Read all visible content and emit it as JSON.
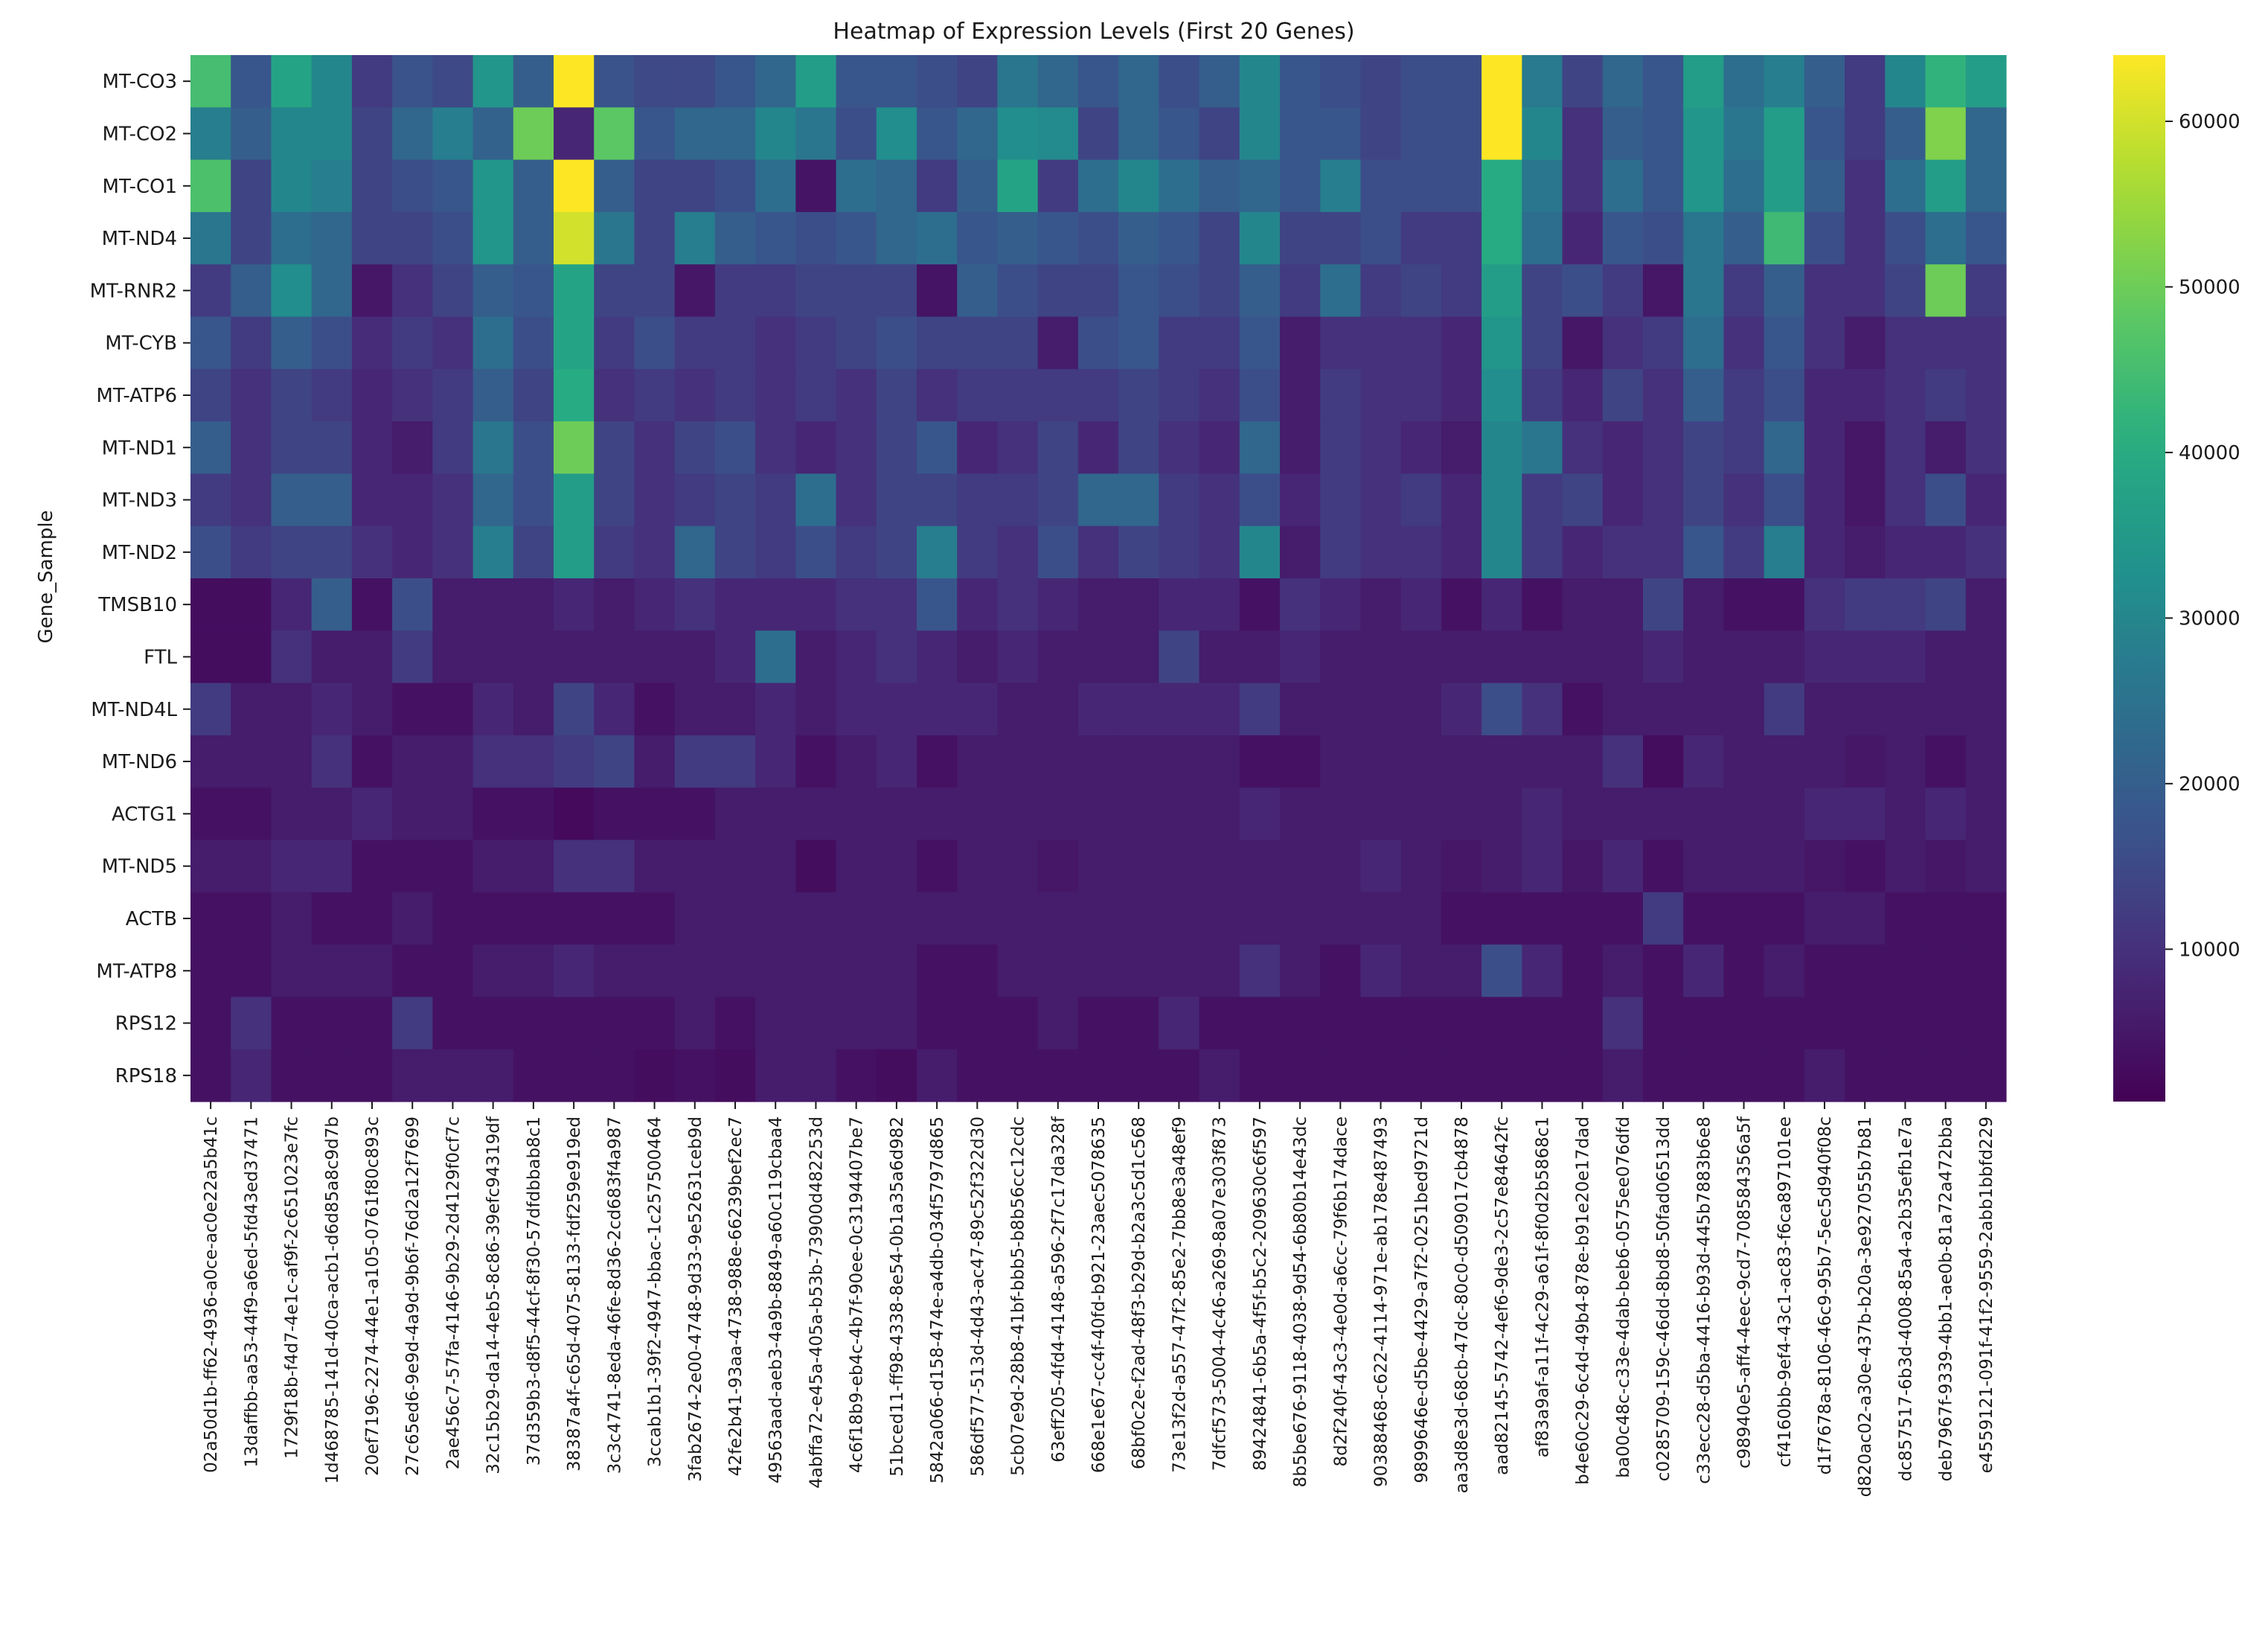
{
  "chart_data": {
    "type": "heatmap",
    "title": "Heatmap of Expression Levels (First 20 Genes)",
    "ylabel": "Gene_Sample",
    "xlabel": "",
    "colormap": "viridis",
    "vmin": 800,
    "vmax": 64000,
    "colorbar_ticks": [
      10000,
      20000,
      30000,
      40000,
      50000,
      60000
    ],
    "colorbar_labels": [
      "10000",
      "20000",
      "30000",
      "40000",
      "50000",
      "60000"
    ],
    "rows": [
      "MT-CO3",
      "MT-CO2",
      "MT-CO1",
      "MT-ND4",
      "MT-RNR2",
      "MT-CYB",
      "MT-ATP6",
      "MT-ND1",
      "MT-ND3",
      "MT-ND2",
      "TMSB10",
      "FTL",
      "MT-ND4L",
      "MT-ND6",
      "ACTG1",
      "MT-ND5",
      "ACTB",
      "MT-ATP8",
      "RPS12",
      "RPS18"
    ],
    "columns": [
      "02a50d1b-ff62-4936-a0ce-ac0e22a5b41c",
      "13daffbb-aa53-44f9-a6ed-5fd43ed37471",
      "1729f18b-f4d7-4e1c-af9f-2c651023e7fc",
      "1d468785-141d-40ca-acb1-d6d85a8c9d7b",
      "20ef7196-2274-44e1-a105-0761f80c893c",
      "27c65ed6-9e9d-4a9d-9b6f-76d2a12f7699",
      "2ae456c7-57fa-4146-9b29-2d4129f0cf7c",
      "32c15b29-da14-4eb5-8c86-39efc94319df",
      "37d359b3-d8f5-44cf-8f30-57dfdbbab8c1",
      "38387a4f-c65d-4075-8133-fdf259e919ed",
      "3c3c4741-8eda-46fe-8d36-2cd683f4a987",
      "3ccab1b1-39f2-4947-bbac-1c257500464",
      "3fab2674-2e00-4748-9d33-9e52631ceb9d",
      "42fe2b41-93aa-4738-988e-66239bef2ec7",
      "49563aad-aeb3-4a9b-8849-a60c119cbaa4",
      "4abffa72-e45a-405a-b53b-73900d482253d",
      "4c6f18b9-eb4c-4b7f-90ee-0c3194407be7",
      "51bced11-ff98-4338-8e54-0b1a35a6d982",
      "5842a066-d158-474e-a4db-034f5797d865",
      "586df577-513d-4d43-ac47-89c52f322d30",
      "5cb07e9d-28b8-41bf-bbb5-b8b56cc12cdc",
      "63eff205-4fd4-4148-a596-2f7c17da328f",
      "668e1e67-cc4f-40fd-b921-23aec5078635",
      "68bf0c2e-f2ad-48f3-b29d-b2a3c5d1c568",
      "73e13f2d-a557-47f2-85e2-7bb8e3a48ef9",
      "7dfcf573-5004-4c46-a269-8a07e303f873",
      "89424841-6b5a-4f5f-b5c2-209630c6f597",
      "8b5be676-9118-4038-9d54-6b80b14e43dc",
      "8d2f240f-43c3-4e0d-a6cc-79f6b174dace",
      "90388468-c622-4114-971e-ab178e487493",
      "9899646e-d5be-4429-a7f2-0251bed9721d",
      "aa3d8e3d-68cb-47dc-80c0-d509017cb4878",
      "aad82145-5742-4ef6-9de3-2c57e84642fc",
      "af83a9af-a11f-4c29-a61f-8f0d2b5868c1",
      "b4e60c29-6c4d-49b4-878e-b91e20e17dad",
      "ba00c48c-c33e-4dab-beb6-0575ee076dfd",
      "c0285709-159c-46dd-8bd8-50fad06513dd",
      "c33ecc28-d5ba-4416-b93d-445b7883b6e8",
      "c98940e5-aff4-4eec-9cd7-708584356a5f",
      "cf4160bb-9ef4-43c1-ac83-f6ca897101ee",
      "d1f7678a-8106-46c9-95b7-5ec5d940f08c",
      "d820ac02-a30e-437b-b20a-3e927055b7b81",
      "dc857517-6b3d-4008-85a4-a2b35efb1e7a",
      "deb7967f-9339-4bb1-ae0b-81a72a472bba",
      "e4559121-091f-41f2-9559-2abb1bbfd229"
    ],
    "values": [
      [
        45000,
        18000,
        38000,
        30000,
        12000,
        17000,
        15000,
        34000,
        20000,
        64000,
        17000,
        15000,
        15000,
        18000,
        22000,
        36000,
        18000,
        18000,
        16000,
        14000,
        26000,
        22000,
        18000,
        22000,
        16000,
        20000,
        30000,
        18000,
        16000,
        14000,
        16000,
        16000,
        64000,
        27000,
        14000,
        22000,
        18000,
        36000,
        24000,
        28000,
        20000,
        12000,
        30000,
        42000,
        36000
      ],
      [
        28000,
        20000,
        30000,
        30000,
        14000,
        22000,
        28000,
        21000,
        50000,
        8000,
        48000,
        18000,
        22000,
        22000,
        30000,
        26000,
        16000,
        32000,
        18000,
        22000,
        32000,
        31000,
        14000,
        22000,
        18000,
        14000,
        30000,
        18000,
        18000,
        14000,
        16000,
        16000,
        64000,
        30000,
        10000,
        20000,
        18000,
        34000,
        26000,
        36000,
        18000,
        12000,
        20000,
        52000,
        22000
      ],
      [
        46000,
        14000,
        30000,
        28000,
        14000,
        16000,
        18000,
        34000,
        20000,
        64000,
        20000,
        14000,
        14000,
        16000,
        24000,
        4500,
        24000,
        22000,
        12000,
        20000,
        38000,
        12000,
        24000,
        30000,
        24000,
        20000,
        22000,
        18000,
        28000,
        16000,
        16000,
        16000,
        40000,
        26000,
        10000,
        24000,
        18000,
        34000,
        24000,
        36000,
        20000,
        10000,
        24000,
        36000,
        22000
      ],
      [
        26000,
        14000,
        24000,
        22000,
        14000,
        14000,
        16000,
        34000,
        20000,
        60000,
        26000,
        14000,
        28000,
        20000,
        18000,
        16000,
        18000,
        22000,
        24000,
        18000,
        20000,
        18000,
        16000,
        20000,
        18000,
        14000,
        30000,
        14000,
        14000,
        16000,
        12000,
        12000,
        40000,
        24000,
        8000,
        18000,
        16000,
        26000,
        20000,
        44000,
        16000,
        10000,
        16000,
        24000,
        18000
      ],
      [
        12000,
        20000,
        32000,
        22000,
        5000,
        10000,
        14000,
        20000,
        18000,
        38000,
        14000,
        14000,
        5000,
        12000,
        12000,
        14000,
        14000,
        14000,
        4500,
        20000,
        16000,
        14000,
        14000,
        18000,
        16000,
        14000,
        20000,
        12000,
        24000,
        12000,
        14000,
        12000,
        36000,
        14000,
        16000,
        12000,
        5000,
        26000,
        12000,
        20000,
        10000,
        10000,
        14000,
        50000,
        12000
      ],
      [
        18000,
        12000,
        20000,
        16000,
        9000,
        12000,
        10000,
        24000,
        16000,
        38000,
        12000,
        16000,
        12000,
        12000,
        10000,
        12000,
        14000,
        16000,
        14000,
        14000,
        14000,
        6000,
        16000,
        18000,
        12000,
        12000,
        18000,
        6000,
        10000,
        10000,
        10000,
        8000,
        34000,
        14000,
        5000,
        10000,
        12000,
        24000,
        10000,
        18000,
        10000,
        6000,
        10000,
        10000,
        10000
      ],
      [
        14000,
        10000,
        14000,
        12000,
        8000,
        10000,
        12000,
        20000,
        14000,
        40000,
        10000,
        12000,
        10000,
        12000,
        10000,
        12000,
        10000,
        14000,
        10000,
        12000,
        12000,
        12000,
        12000,
        14000,
        12000,
        10000,
        16000,
        6000,
        12000,
        10000,
        10000,
        8000,
        32000,
        12000,
        8000,
        14000,
        10000,
        20000,
        12000,
        16000,
        8000,
        8000,
        10000,
        12000,
        10000
      ],
      [
        20000,
        10000,
        14000,
        14000,
        8000,
        6000,
        12000,
        26000,
        16000,
        50000,
        14000,
        10000,
        14000,
        16000,
        10000,
        8000,
        10000,
        14000,
        18000,
        8000,
        10000,
        14000,
        8000,
        14000,
        10000,
        8000,
        22000,
        6000,
        12000,
        10000,
        8000,
        6000,
        30000,
        26000,
        10000,
        8000,
        10000,
        14000,
        12000,
        22000,
        8000,
        5000,
        10000,
        6000,
        10000
      ],
      [
        12000,
        10000,
        20000,
        20000,
        8000,
        8000,
        10000,
        22000,
        16000,
        36000,
        14000,
        10000,
        12000,
        14000,
        12000,
        24000,
        10000,
        14000,
        14000,
        12000,
        12000,
        14000,
        22000,
        22000,
        12000,
        10000,
        16000,
        8000,
        12000,
        10000,
        12000,
        8000,
        30000,
        12000,
        14000,
        8000,
        10000,
        14000,
        10000,
        16000,
        8000,
        5000,
        10000,
        16000,
        8000
      ],
      [
        16000,
        12000,
        14000,
        14000,
        10000,
        8000,
        10000,
        28000,
        14000,
        36000,
        12000,
        10000,
        22000,
        14000,
        12000,
        16000,
        12000,
        14000,
        28000,
        12000,
        10000,
        16000,
        10000,
        14000,
        12000,
        10000,
        30000,
        6000,
        12000,
        10000,
        10000,
        8000,
        30000,
        12000,
        8000,
        10000,
        10000,
        18000,
        12000,
        28000,
        8000,
        6000,
        8000,
        8000,
        10000
      ],
      [
        3000,
        3000,
        8000,
        20000,
        4000,
        16000,
        6000,
        6000,
        6000,
        8000,
        6000,
        8000,
        10000,
        8000,
        8000,
        8000,
        10000,
        10000,
        18000,
        8000,
        10000,
        8000,
        6000,
        6000,
        8000,
        8000,
        4000,
        10000,
        8000,
        6000,
        8000,
        4000,
        8000,
        4000,
        6000,
        6000,
        14000,
        6000,
        4000,
        4000,
        10000,
        12000,
        12000,
        14000,
        6000
      ],
      [
        3000,
        3000,
        10000,
        6000,
        6000,
        12000,
        6000,
        6000,
        6000,
        6000,
        6000,
        6000,
        6000,
        8000,
        24000,
        6000,
        8000,
        10000,
        8000,
        6000,
        8000,
        6000,
        6000,
        6000,
        14000,
        6000,
        6000,
        8000,
        6000,
        6000,
        6000,
        6000,
        6000,
        6000,
        6000,
        6000,
        8000,
        6000,
        6000,
        6000,
        8000,
        8000,
        8000,
        6000,
        6000
      ],
      [
        12000,
        6000,
        6000,
        8000,
        6000,
        4000,
        4000,
        8000,
        6000,
        14000,
        8000,
        4000,
        6000,
        6000,
        8000,
        6000,
        8000,
        8000,
        8000,
        8000,
        6000,
        6000,
        8000,
        8000,
        8000,
        8000,
        12000,
        6000,
        6000,
        6000,
        6000,
        8000,
        16000,
        10000,
        4000,
        6000,
        6000,
        6000,
        6000,
        12000,
        6000,
        6000,
        6000,
        6000,
        6000
      ],
      [
        6000,
        6000,
        6000,
        10000,
        4000,
        6000,
        6000,
        10000,
        10000,
        12000,
        14000,
        6000,
        12000,
        12000,
        8000,
        4000,
        6000,
        8000,
        4000,
        6000,
        6000,
        6000,
        6000,
        6000,
        6000,
        6000,
        4000,
        4000,
        6000,
        6000,
        6000,
        6000,
        6000,
        6000,
        6000,
        10000,
        3000,
        8000,
        6000,
        6000,
        6000,
        5000,
        6000,
        4000,
        6000
      ],
      [
        4000,
        4000,
        6000,
        6000,
        8000,
        6000,
        6000,
        4000,
        4000,
        2500,
        4000,
        4000,
        4000,
        6000,
        6000,
        6000,
        6000,
        6000,
        6000,
        6000,
        6000,
        6000,
        6000,
        6000,
        6000,
        6000,
        8000,
        6000,
        6000,
        6000,
        6000,
        6000,
        6000,
        8000,
        6000,
        6000,
        6000,
        6000,
        6000,
        6000,
        8000,
        8000,
        6000,
        8000,
        6000
      ],
      [
        6000,
        6000,
        8000,
        8000,
        4000,
        4000,
        4000,
        6000,
        6000,
        10000,
        10000,
        6000,
        6000,
        6000,
        6000,
        3000,
        6000,
        6000,
        4000,
        6000,
        6000,
        5000,
        6000,
        6000,
        6000,
        6000,
        6000,
        6000,
        6000,
        8000,
        6000,
        5000,
        6000,
        8000,
        5000,
        8000,
        4000,
        6000,
        6000,
        6000,
        5000,
        4000,
        6000,
        5000,
        6000
      ],
      [
        4000,
        4000,
        6000,
        4000,
        4000,
        6000,
        4000,
        4000,
        4000,
        4000,
        4000,
        4000,
        6000,
        6000,
        6000,
        6000,
        6000,
        6000,
        6000,
        6000,
        6000,
        6000,
        6000,
        6000,
        6000,
        6000,
        6000,
        6000,
        6000,
        6000,
        6000,
        4000,
        4000,
        4000,
        4000,
        4000,
        12000,
        4000,
        4000,
        4000,
        6000,
        6000,
        4000,
        4000,
        4000
      ],
      [
        4000,
        4000,
        6000,
        6000,
        6000,
        4000,
        4000,
        6000,
        6000,
        8000,
        6000,
        6000,
        6000,
        6000,
        6000,
        6000,
        6000,
        6000,
        4000,
        4000,
        6000,
        6000,
        6000,
        6000,
        6000,
        6000,
        10000,
        6000,
        4000,
        8000,
        6000,
        6000,
        16000,
        8000,
        4000,
        6000,
        4000,
        8000,
        4000,
        6000,
        4000,
        4000,
        4000,
        4000,
        4000
      ],
      [
        4000,
        10000,
        4000,
        4000,
        4000,
        12000,
        4000,
        4000,
        4000,
        4000,
        4000,
        4000,
        6000,
        4000,
        6000,
        6000,
        6000,
        6000,
        4000,
        4000,
        4000,
        6000,
        4000,
        4000,
        8000,
        4000,
        4000,
        4000,
        4000,
        4000,
        4000,
        4000,
        4000,
        4000,
        4000,
        10000,
        4000,
        4000,
        4000,
        4000,
        4000,
        4000,
        4000,
        4000,
        4000
      ],
      [
        4000,
        8000,
        4000,
        4000,
        4000,
        6000,
        6000,
        6000,
        4000,
        4000,
        4000,
        3000,
        4000,
        3000,
        6000,
        6000,
        4000,
        3000,
        6000,
        4000,
        4000,
        4000,
        4000,
        4000,
        4000,
        6000,
        4000,
        4000,
        4000,
        4000,
        4000,
        4000,
        4000,
        4000,
        4000,
        6000,
        4000,
        4000,
        4000,
        4000,
        6000,
        4000,
        4000,
        4000,
        4000
      ]
    ]
  }
}
